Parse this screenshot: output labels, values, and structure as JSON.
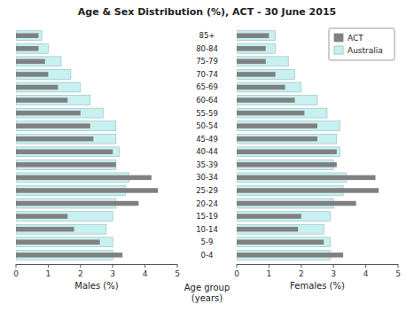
{
  "chart_data": {
    "type": "bar",
    "orientation": "horizontal",
    "title": "Age & Sex Distribution (%), ACT - 30 June 2015",
    "xlabel": "Age group\n(years)",
    "xlabel_left": "Males (%)",
    "xlabel_right": "Females (%)",
    "categories": [
      "0-4",
      "5-9",
      "10-14",
      "15-19",
      "20-24",
      "25-29",
      "30-34",
      "35-39",
      "40-44",
      "45-49",
      "50-54",
      "55-59",
      "60-64",
      "65-69",
      "70-74",
      "75-79",
      "80-84",
      "85+"
    ],
    "xlim": [
      0,
      5
    ],
    "xticks": [
      0,
      1,
      2,
      3,
      4,
      5
    ],
    "legend": "upper right",
    "series": [
      {
        "name": "Australia",
        "color": "#c8f0f0",
        "values_left": [
          3.0,
          3.0,
          2.8,
          3.0,
          3.1,
          3.4,
          3.5,
          3.1,
          3.2,
          3.1,
          3.1,
          2.7,
          2.3,
          2.0,
          1.7,
          1.4,
          1.0,
          0.8
        ],
        "values_right": [
          2.9,
          2.9,
          2.7,
          2.9,
          3.0,
          3.3,
          3.4,
          3.0,
          3.2,
          3.1,
          3.2,
          2.8,
          2.5,
          2.0,
          1.8,
          1.6,
          1.2,
          1.2
        ]
      },
      {
        "name": "ACT",
        "color": "#808080",
        "values_left": [
          3.3,
          2.6,
          1.8,
          1.6,
          3.8,
          4.4,
          4.2,
          3.1,
          3.0,
          2.4,
          2.3,
          2.0,
          1.6,
          1.3,
          1.0,
          0.9,
          0.7,
          0.7
        ],
        "values_right": [
          3.3,
          2.7,
          1.9,
          2.0,
          3.7,
          4.4,
          4.3,
          3.1,
          3.1,
          2.5,
          2.5,
          2.1,
          1.8,
          1.5,
          1.2,
          0.9,
          0.9,
          1.0
        ]
      }
    ]
  }
}
